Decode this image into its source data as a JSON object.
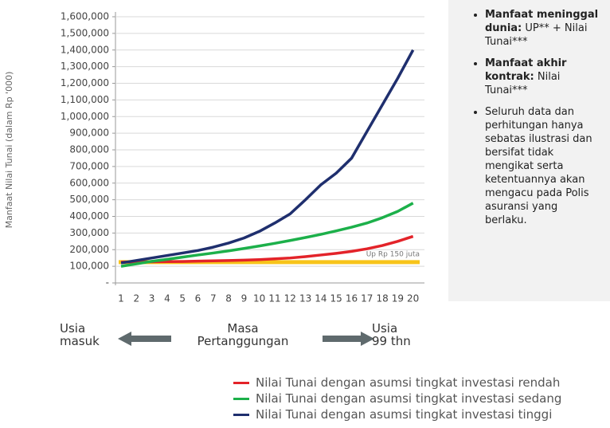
{
  "chart_data": {
    "type": "line",
    "y_label": "Manfaat Nilai Tunai (dalam Rp '000)",
    "categories": [
      1,
      2,
      3,
      4,
      5,
      6,
      7,
      8,
      9,
      10,
      11,
      12,
      13,
      14,
      15,
      16,
      17,
      18,
      19,
      20
    ],
    "series": [
      {
        "name": "Nilai Tunai dengan asumsi tingkat investasi rendah",
        "color": "#e32329",
        "values": [
          125000,
          126000,
          127000,
          128000,
          129000,
          131000,
          133000,
          135000,
          137000,
          140000,
          145000,
          150000,
          158000,
          168000,
          178000,
          190000,
          205000,
          225000,
          250000,
          280000
        ]
      },
      {
        "name": "Nilai Tunai dengan asumsi tingkat investasi sedang",
        "color": "#1cb04a",
        "values": [
          100000,
          115000,
          130000,
          142000,
          155000,
          168000,
          180000,
          193000,
          207000,
          222000,
          238000,
          255000,
          273000,
          292000,
          313000,
          335000,
          360000,
          392000,
          430000,
          480000
        ]
      },
      {
        "name": "Nilai Tunai dengan asumsi tingkat investasi tinggi",
        "color": "#1f2f6e",
        "values": [
          120000,
          135000,
          150000,
          165000,
          180000,
          195000,
          215000,
          240000,
          270000,
          310000,
          360000,
          415000,
          500000,
          590000,
          660000,
          750000,
          910000,
          1070000,
          1230000,
          1400000
        ]
      }
    ],
    "reference_line": {
      "value": 125000,
      "label": "Up Rp 150 juta",
      "color": "#f7c41a"
    },
    "ylim": [
      0,
      1600000
    ],
    "yticks": [
      {
        "value": 0,
        "label": "-"
      },
      {
        "value": 100000,
        "label": "100,000"
      },
      {
        "value": 200000,
        "label": "200,000"
      },
      {
        "value": 300000,
        "label": "300,000"
      },
      {
        "value": 400000,
        "label": "400,000"
      },
      {
        "value": 500000,
        "label": "500,000"
      },
      {
        "value": 600000,
        "label": "600,000"
      },
      {
        "value": 700000,
        "label": "700,000"
      },
      {
        "value": 800000,
        "label": "800,000"
      },
      {
        "value": 900000,
        "label": "900,000"
      },
      {
        "value": 1000000,
        "label": "1,000,000"
      },
      {
        "value": 1100000,
        "label": "1,100,000"
      },
      {
        "value": 1200000,
        "label": "1,200,000"
      },
      {
        "value": 1300000,
        "label": "1,300,000"
      },
      {
        "value": 1400000,
        "label": "1,400,000"
      },
      {
        "value": 1500000,
        "label": "1,500,000"
      },
      {
        "value": 1600000,
        "label": "1,600,000"
      }
    ],
    "grid": true
  },
  "axis_notes": {
    "left": "Usia masuk",
    "middle": "Masa Pertanggungan",
    "right": "Usia 99 thn"
  },
  "notes": [
    {
      "bold": "Manfaat meninggal dunia:",
      "text": "UP** + Nilai Tunai***"
    },
    {
      "bold": "Manfaat akhir kontrak:",
      "text": "Nilai Tunai***"
    },
    {
      "text": "Seluruh data dan perhitungan hanya sebatas ilustrasi dan bersifat tidak mengikat serta ketentuannya akan mengacu pada Polis asuransi yang berlaku."
    }
  ]
}
